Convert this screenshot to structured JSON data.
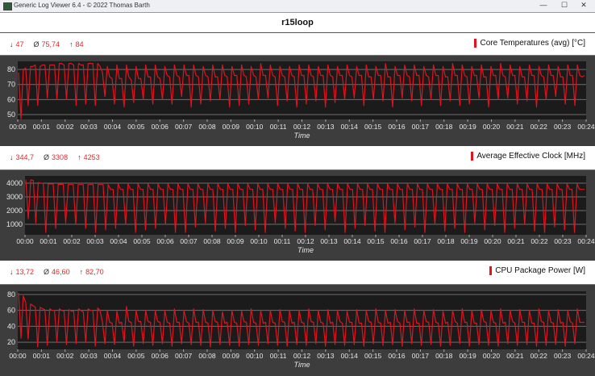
{
  "window": {
    "title": "Generic Log Viewer 6.4 - © 2022 Thomas Barth",
    "minimize": "—",
    "maximize": "☐",
    "close": "✕"
  },
  "header": {
    "title": "r15loop"
  },
  "panels": [
    {
      "stats": {
        "min_icon": "↓",
        "min": "47",
        "avg_icon": "Ø",
        "avg": "75,74",
        "max_icon": "↑",
        "max": "84"
      },
      "legend": "Core Temperatures (avg) [°C]"
    },
    {
      "stats": {
        "min_icon": "↓",
        "min": "344,7",
        "avg_icon": "Ø",
        "avg": "3308",
        "max_icon": "↑",
        "max": "4253"
      },
      "legend": "Average Effective Clock [MHz]"
    },
    {
      "stats": {
        "min_icon": "↓",
        "min": "13,72",
        "avg_icon": "Ø",
        "avg": "46,60",
        "max_icon": "↑",
        "max": "82,70"
      },
      "legend": "CPU Package Power [W]"
    }
  ],
  "chart_data": [
    {
      "type": "line",
      "series_name": "Core Temperatures (avg) [°C]",
      "xlabel": "Time",
      "line_color": "#e0141e",
      "x_range": [
        "00:00",
        "00:24"
      ],
      "xticks": [
        "00:00",
        "00:01",
        "00:02",
        "00:03",
        "00:04",
        "00:05",
        "00:06",
        "00:07",
        "00:08",
        "00:09",
        "00:10",
        "00:11",
        "00:12",
        "00:13",
        "00:14",
        "00:15",
        "00:16",
        "00:17",
        "00:18",
        "00:19",
        "00:20",
        "00:21",
        "00:22",
        "00:23",
        "00:24"
      ],
      "ylim": [
        46.8,
        85.4
      ],
      "yticks": [
        50,
        60,
        70,
        80
      ],
      "grid": true,
      "values": [
        78,
        47,
        80,
        81,
        56,
        82,
        82,
        83,
        56,
        82,
        83,
        83,
        61,
        83,
        83,
        83,
        60,
        84,
        84,
        83,
        60,
        84,
        84,
        83,
        56,
        84,
        83,
        83,
        57,
        84,
        84,
        84,
        56,
        84,
        82,
        78,
        62,
        82,
        75,
        74,
        57,
        83,
        74,
        74,
        55,
        83,
        75,
        73,
        58,
        82,
        74,
        74,
        60,
        83,
        75,
        75,
        57,
        83,
        75,
        74,
        60,
        82,
        76,
        75,
        57,
        83,
        76,
        75,
        62,
        83,
        76,
        76,
        55,
        83,
        76,
        75,
        57,
        82,
        76,
        75,
        59,
        83,
        75,
        75,
        60,
        83,
        76,
        75,
        55,
        82,
        76,
        76,
        56,
        83,
        76,
        75,
        57,
        82,
        76,
        75,
        60,
        84,
        76,
        76,
        61,
        83,
        76,
        75,
        56,
        82,
        76,
        75,
        59,
        82,
        76,
        75,
        55,
        83,
        76,
        76,
        57,
        83,
        76,
        75,
        59,
        82,
        76,
        76,
        55,
        83,
        76,
        75,
        58,
        82,
        76,
        76,
        60,
        83,
        76,
        75,
        61,
        82,
        76,
        76,
        56,
        83,
        75,
        75,
        60,
        82,
        76,
        76,
        59,
        84,
        75,
        75,
        55,
        82,
        76,
        76,
        61,
        83,
        76,
        75,
        59,
        83,
        76,
        76,
        56,
        82,
        76,
        75,
        60,
        83,
        76,
        76,
        56,
        82,
        75,
        75,
        59,
        84,
        76,
        76,
        56,
        83,
        76,
        75,
        57,
        82,
        76,
        76,
        61,
        83,
        75,
        75,
        55,
        82,
        76,
        76,
        60,
        84,
        76,
        75,
        61,
        83,
        76,
        76,
        57,
        82,
        75,
        75,
        59,
        83,
        76,
        76,
        55,
        82,
        76,
        75,
        60,
        83,
        76,
        76,
        62,
        82,
        75,
        75,
        57,
        83,
        76,
        76,
        56,
        83,
        76,
        75,
        76
      ]
    },
    {
      "type": "line",
      "series_name": "Average Effective Clock [MHz]",
      "xlabel": "Time",
      "line_color": "#e0141e",
      "x_range": [
        "00:00",
        "00:24"
      ],
      "xticks": [
        "00:00",
        "00:01",
        "00:02",
        "00:03",
        "00:04",
        "00:05",
        "00:06",
        "00:07",
        "00:08",
        "00:09",
        "00:10",
        "00:11",
        "00:12",
        "00:13",
        "00:14",
        "00:15",
        "00:16",
        "00:17",
        "00:18",
        "00:19",
        "00:20",
        "00:21",
        "00:22",
        "00:23",
        "00:24"
      ],
      "ylim": [
        235,
        4530
      ],
      "yticks": [
        1000,
        2000,
        3000,
        4000
      ],
      "grid": true,
      "values": [
        4250,
        1400,
        4250,
        4200,
        1100,
        4050,
        4000,
        3980,
        400,
        3950,
        3950,
        3950,
        700,
        3920,
        3920,
        3920,
        1100,
        3900,
        3900,
        3900,
        1000,
        3900,
        3900,
        3900,
        700,
        3900,
        3900,
        3900,
        400,
        3900,
        3900,
        3900,
        600,
        3900,
        3550,
        3550,
        700,
        3950,
        3550,
        3550,
        1000,
        3950,
        3550,
        3550,
        400,
        3950,
        3550,
        3550,
        600,
        3950,
        3550,
        3550,
        700,
        3950,
        3550,
        3550,
        1000,
        3950,
        3550,
        3550,
        400,
        3950,
        3550,
        3550,
        400,
        3950,
        3550,
        3550,
        800,
        3950,
        3550,
        3550,
        1100,
        3950,
        3550,
        3550,
        500,
        3950,
        3550,
        3550,
        700,
        3950,
        3550,
        3550,
        400,
        3950,
        3550,
        3550,
        900,
        3950,
        3550,
        3550,
        600,
        3950,
        3550,
        3550,
        400,
        3950,
        3550,
        3550,
        1100,
        3950,
        3550,
        3550,
        700,
        3950,
        3550,
        3550,
        500,
        3950,
        3550,
        3550,
        400,
        3950,
        3550,
        3550,
        900,
        3950,
        3550,
        3550,
        600,
        3950,
        3550,
        3550,
        1200,
        3950,
        3550,
        3550,
        400,
        3950,
        3550,
        3550,
        700,
        3950,
        3550,
        3550,
        900,
        3950,
        3550,
        3550,
        500,
        3950,
        3550,
        3550,
        400,
        3950,
        3550,
        3550,
        1100,
        3950,
        3550,
        3550,
        600,
        3950,
        3550,
        3550,
        800,
        3950,
        3550,
        3550,
        400,
        3950,
        3550,
        3550,
        1000,
        3950,
        3550,
        3550,
        500,
        3950,
        3550,
        3550,
        700,
        3950,
        3550,
        3550,
        400,
        3950,
        3550,
        3550,
        1100,
        3950,
        3550,
        3550,
        600,
        3950,
        3550,
        3550,
        900,
        3950,
        3550,
        3550,
        400,
        3950,
        3550,
        3550,
        700,
        3950,
        3550,
        3550,
        1000,
        3950,
        3550,
        3550,
        500,
        3950,
        3550,
        3550,
        400,
        3950,
        3550,
        3550,
        800,
        3950,
        3550,
        3550,
        600,
        3950,
        3550,
        3550,
        400,
        3950,
        3550,
        3550,
        3550
      ]
    },
    {
      "type": "line",
      "series_name": "CPU Package Power [W]",
      "xlabel": "Time",
      "line_color": "#e0141e",
      "x_range": [
        "00:00",
        "00:24"
      ],
      "xticks": [
        "00:00",
        "00:01",
        "00:02",
        "00:03",
        "00:04",
        "00:05",
        "00:06",
        "00:07",
        "00:08",
        "00:09",
        "00:10",
        "00:11",
        "00:12",
        "00:13",
        "00:14",
        "00:15",
        "00:16",
        "00:17",
        "00:18",
        "00:19",
        "00:20",
        "00:21",
        "00:22",
        "00:23",
        "00:24"
      ],
      "ylim": [
        11,
        84
      ],
      "yticks": [
        20,
        40,
        60,
        80
      ],
      "grid": true,
      "values": [
        82,
        25,
        78,
        70,
        24,
        68,
        66,
        64,
        14,
        64,
        62,
        61,
        16,
        62,
        60,
        60,
        20,
        62,
        60,
        59,
        17,
        61,
        59,
        59,
        18,
        62,
        60,
        58,
        20,
        62,
        60,
        60,
        15,
        63,
        60,
        45,
        18,
        60,
        45,
        44,
        17,
        59,
        44,
        45,
        20,
        65,
        46,
        45,
        15,
        60,
        46,
        46,
        18,
        60,
        46,
        45,
        16,
        60,
        46,
        45,
        18,
        60,
        45,
        44,
        15,
        62,
        45,
        45,
        18,
        60,
        46,
        44,
        17,
        62,
        45,
        45,
        16,
        61,
        45,
        44,
        14,
        60,
        46,
        45,
        17,
        58,
        44,
        45,
        16,
        60,
        45,
        44,
        15,
        59,
        46,
        45,
        17,
        62,
        45,
        44,
        16,
        60,
        44,
        45,
        18,
        60,
        45,
        44,
        16,
        61,
        46,
        45,
        15,
        60,
        44,
        45,
        17,
        60,
        45,
        44,
        16,
        62,
        46,
        45,
        18,
        60,
        45,
        44,
        15,
        61,
        44,
        45,
        17,
        60,
        46,
        44,
        16,
        59,
        45,
        45,
        17,
        61,
        44,
        44,
        15,
        60,
        46,
        45,
        18,
        62,
        45,
        44,
        16,
        60,
        44,
        45,
        17,
        61,
        46,
        44,
        15,
        60,
        45,
        45,
        18,
        62,
        44,
        44,
        16,
        60,
        46,
        45,
        17,
        61,
        45,
        44,
        15,
        59,
        44,
        45,
        16,
        60,
        46,
        44,
        18,
        62,
        45,
        45,
        15,
        60,
        44,
        44,
        17,
        61,
        46,
        45,
        16,
        60,
        45,
        44,
        15,
        62,
        44,
        45,
        18,
        60,
        46,
        44,
        16,
        61,
        45,
        45,
        17,
        60,
        44,
        44,
        15,
        62,
        46,
        45,
        16,
        60,
        45,
        44,
        17,
        61,
        44,
        45,
        15,
        60,
        46,
        44,
        18,
        62,
        45,
        45,
        45
      ]
    }
  ]
}
